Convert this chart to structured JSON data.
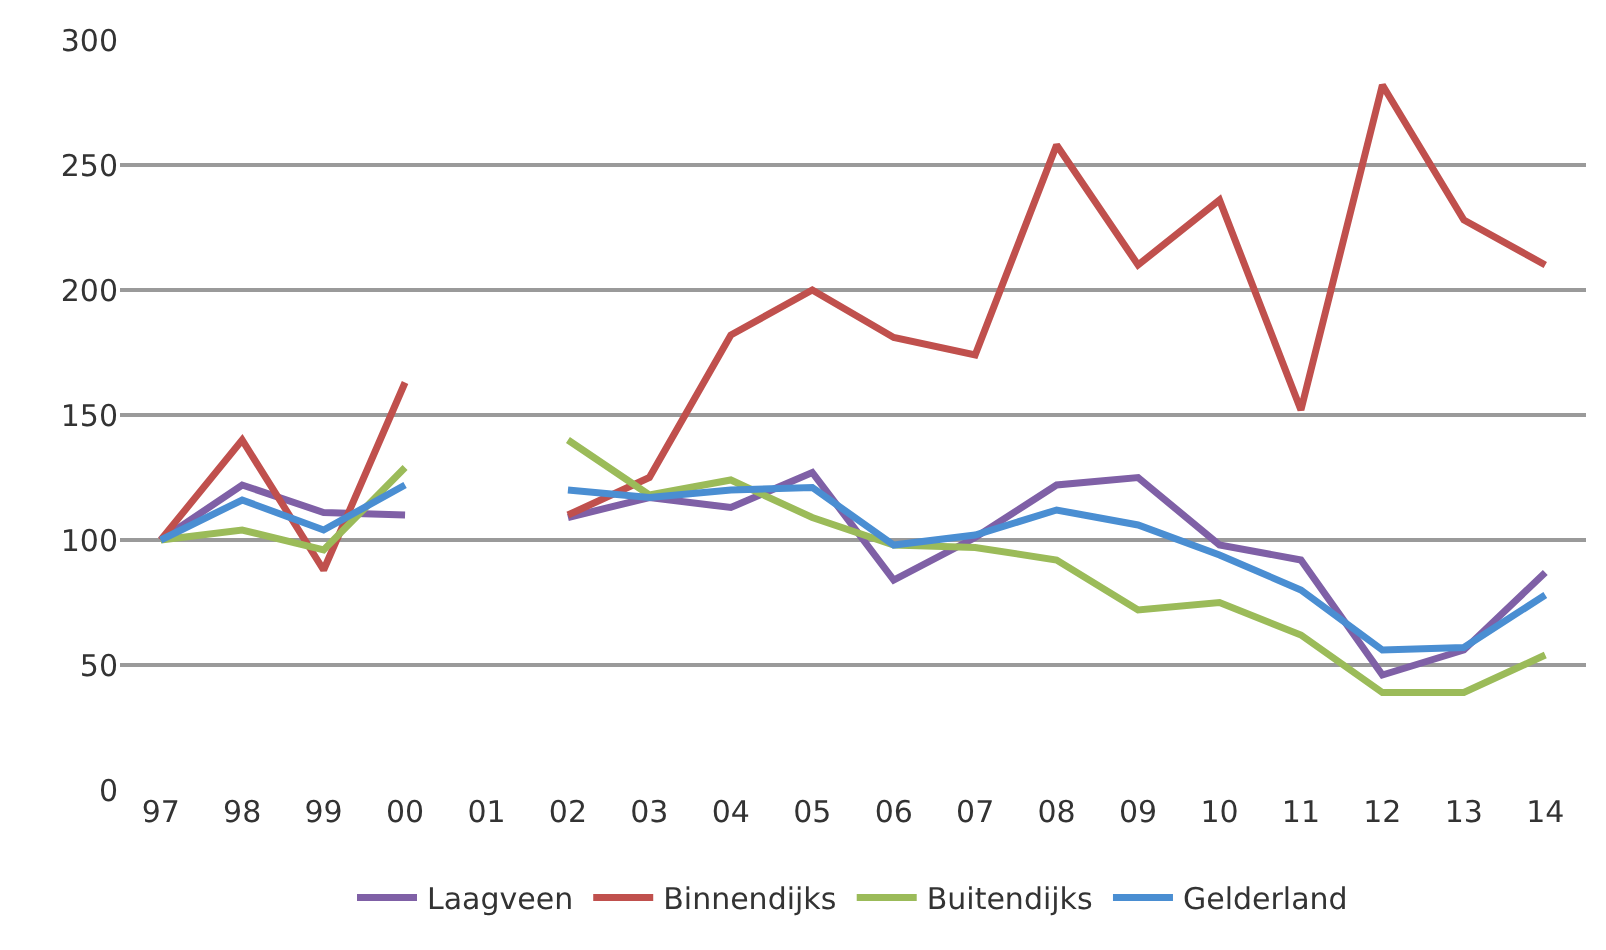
{
  "chart_data": {
    "type": "line",
    "categories": [
      "97",
      "98",
      "99",
      "00",
      "01",
      "02",
      "03",
      "04",
      "05",
      "06",
      "07",
      "08",
      "09",
      "10",
      "11",
      "12",
      "13",
      "14"
    ],
    "series": [
      {
        "name": "Laagveen",
        "color": "#7f60a6",
        "values": [
          100,
          122,
          111,
          110,
          null,
          109,
          117,
          113,
          127,
          84,
          101,
          122,
          125,
          98,
          92,
          46,
          56,
          87
        ]
      },
      {
        "name": "Binnendijks",
        "color": "#c0504d",
        "values": [
          100,
          140,
          88,
          163,
          null,
          110,
          125,
          182,
          200,
          181,
          174,
          258,
          210,
          236,
          152,
          282,
          228,
          210
        ]
      },
      {
        "name": "Buitendijks",
        "color": "#9bbb59",
        "values": [
          100,
          104,
          96,
          129,
          null,
          140,
          118,
          124,
          109,
          98,
          97,
          92,
          72,
          75,
          62,
          39,
          39,
          54
        ]
      },
      {
        "name": "Gelderland",
        "color": "#4a8ed2",
        "values": [
          100,
          116,
          104,
          122,
          null,
          120,
          117,
          120,
          121,
          98,
          102,
          112,
          106,
          94,
          80,
          56,
          57,
          78
        ]
      }
    ],
    "ylim": [
      0,
      300
    ],
    "yticks": [
      0,
      50,
      100,
      150,
      200,
      250,
      300
    ],
    "grid": "y",
    "legend": "bottom",
    "marker": "none",
    "line_style": "solid"
  }
}
